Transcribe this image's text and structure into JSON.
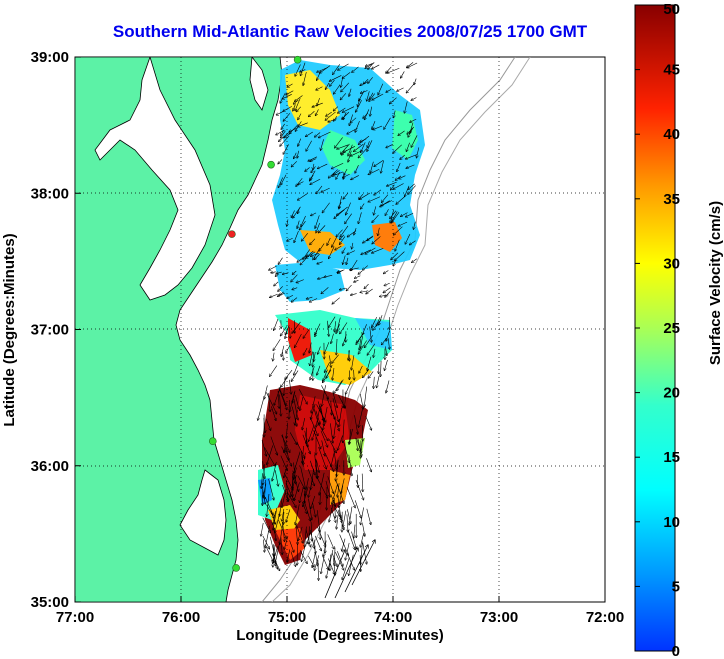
{
  "title": "Southern Mid-Atlantic Raw Velocities 2008/07/25 1700 GMT",
  "map": {
    "xlabel": "Longitude (Degrees:Minutes)",
    "ylabel": "Latitude (Degrees:Minutes)",
    "x_ticks": [
      "77:00",
      "76:00",
      "75:00",
      "74:00",
      "73:00",
      "72:00"
    ],
    "y_ticks": [
      "39:00",
      "38:00",
      "37:00",
      "36:00",
      "35:00"
    ],
    "lon_range": [
      -77,
      -72
    ],
    "lat_range": [
      35,
      39
    ],
    "grid": "dotted",
    "land_color": "#5cf2a6",
    "sites": [
      {
        "lon": -74.9,
        "lat": 38.98,
        "color": "#33dd33"
      },
      {
        "lon": -75.15,
        "lat": 38.21,
        "color": "#33dd33"
      },
      {
        "lon": -75.52,
        "lat": 37.7,
        "color": "#ee2222"
      },
      {
        "lon": -75.7,
        "lat": 36.18,
        "color": "#33dd33"
      },
      {
        "lon": -75.48,
        "lat": 35.25,
        "color": "#33dd33"
      }
    ]
  },
  "colorbar": {
    "label": "Surface Velocity (cm/s)",
    "ticks": [
      "50",
      "45",
      "40",
      "35",
      "30",
      "25",
      "20",
      "15",
      "10",
      "5",
      "0"
    ],
    "min": 0,
    "max": 50,
    "position": "right"
  }
}
